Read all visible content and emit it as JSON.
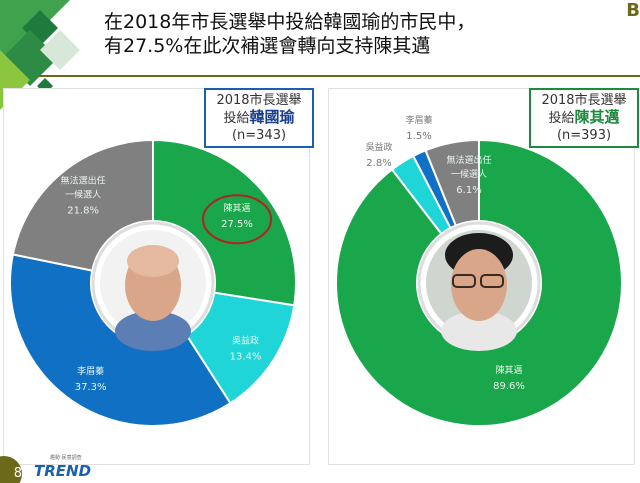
{
  "title": {
    "line1": "在2018年市長選舉中投給韓國瑜的市民中，",
    "line2": "有27.5%在此次補選會轉向支持陳其邁"
  },
  "footer": {
    "page": "8",
    "logo": "TREND",
    "logo_sub": "趨勢 民意調查"
  },
  "corner_mark": "B",
  "colors": {
    "green": "#1aa64a",
    "cyan": "#1fd5d8",
    "blue": "#1070c4",
    "gray": "#808080",
    "highlight_circle": "#b22222",
    "left_box_border": "#1a5fb0",
    "right_box_border": "#1f8a3e"
  },
  "chart_data": [
    {
      "type": "pie",
      "donut": true,
      "legend": {
        "line1": "2018市長選舉",
        "line2_prefix": "投給",
        "line2_name": "韓國瑜",
        "line3": "(n=343)"
      },
      "center_image": "portrait",
      "slices": [
        {
          "label": "陳其邁",
          "value": 27.5,
          "display": "27.5%",
          "color": "#1aa64a",
          "highlighted": true
        },
        {
          "label": "吳益政",
          "value": 13.4,
          "display": "13.4%",
          "color": "#1fd5d8"
        },
        {
          "label": "李眉蓁",
          "value": 37.3,
          "display": "37.3%",
          "color": "#1070c4"
        },
        {
          "label": "無法選出任一候選人",
          "label_lines": [
            "無法選出任",
            "一候選人"
          ],
          "value": 21.8,
          "display": "21.8%",
          "color": "#808080"
        }
      ]
    },
    {
      "type": "pie",
      "donut": true,
      "legend": {
        "line1": "2018市長選舉",
        "line2_prefix": "投給",
        "line2_name": "陳其邁",
        "line3": "(n=393)"
      },
      "center_image": "portrait",
      "slices": [
        {
          "label": "陳其邁",
          "value": 89.6,
          "display": "89.6%",
          "color": "#1aa64a"
        },
        {
          "label": "吳益政",
          "value": 2.8,
          "display": "2.8%",
          "color": "#1fd5d8"
        },
        {
          "label": "李眉蓁",
          "value": 1.5,
          "display": "1.5%",
          "color": "#1070c4"
        },
        {
          "label": "無法選出任一候選人",
          "label_lines": [
            "無法選出任",
            "一候選人"
          ],
          "value": 6.1,
          "display": "6.1%",
          "color": "#808080"
        }
      ]
    }
  ]
}
